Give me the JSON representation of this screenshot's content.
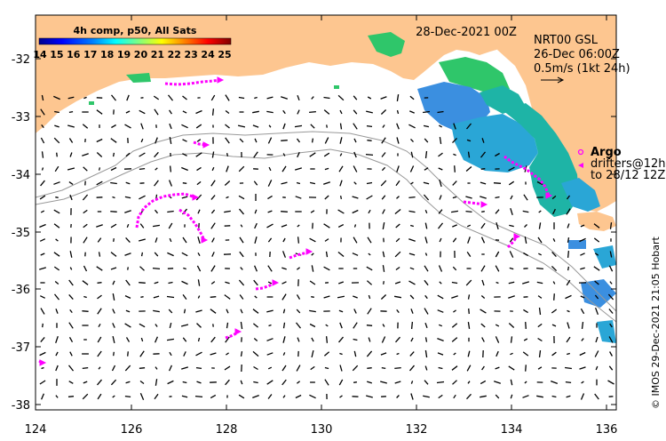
{
  "map": {
    "date_label": "28-Dec-2021 00Z",
    "current_product": "NRT00 GSL",
    "current_time": "26-Dec 06:00Z",
    "current_scale": "0.5m/s (1kt 24h)",
    "credit": "© IMOS 29-Dec-2021 21:05 Hobart"
  },
  "colorbar": {
    "title": "4h comp, p50, All Sats",
    "ticks": [
      "14",
      "15",
      "16",
      "17",
      "18",
      "19",
      "20",
      "21",
      "22",
      "23",
      "24",
      "25"
    ],
    "colors": [
      "#00008f",
      "#0000ff",
      "#0080ff",
      "#00ffff",
      "#80ff80",
      "#ffff00",
      "#ff8000",
      "#ff0000",
      "#800000"
    ]
  },
  "legend": {
    "argo_label": "Argo",
    "drifters_line1": "drifters@12h",
    "drifters_line2": "to 28/12 12Z",
    "marker_color": "#ff00ff"
  },
  "axes": {
    "lon_labels": [
      "124",
      "126",
      "128",
      "130",
      "132",
      "134",
      "136"
    ],
    "lat_labels": [
      "-32",
      "-33",
      "-34",
      "-35",
      "-36",
      "-37",
      "-38"
    ]
  },
  "colors": {
    "land": "#fdc690",
    "sst_green": "#2fc66a",
    "sst_teal": "#1eb4a6",
    "sst_cyan": "#2aa6d6",
    "sst_blue": "#3b8fe0",
    "contour": "#999999"
  }
}
